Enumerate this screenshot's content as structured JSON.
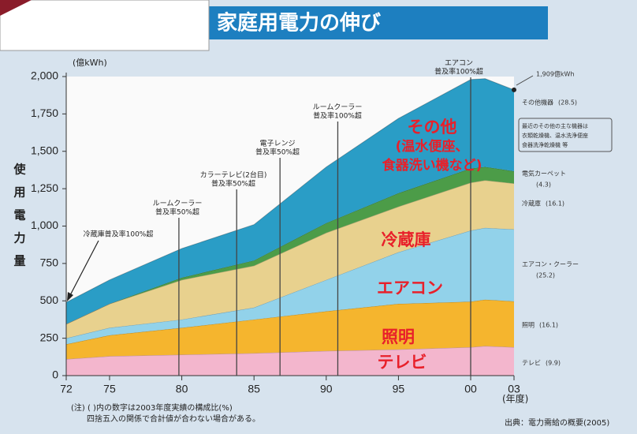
{
  "title": "家庭用電力の伸び",
  "chart_data": {
    "type": "stacked_area",
    "y_unit": "(億kWh)",
    "y_label": "使用電力量",
    "x_unit": "(年度)",
    "x": [
      1972,
      1975,
      1980,
      1985,
      1990,
      1995,
      2000,
      2001,
      2003
    ],
    "xlim": [
      1972,
      2003
    ],
    "xticks": [
      {
        "value": 1972,
        "label": "72"
      },
      {
        "value": 1975,
        "label": "75"
      },
      {
        "value": 1980,
        "label": "80"
      },
      {
        "value": 1985,
        "label": "85"
      },
      {
        "value": 1990,
        "label": "90"
      },
      {
        "value": 1995,
        "label": "95"
      },
      {
        "value": 2000,
        "label": "00"
      },
      {
        "value": 2003,
        "label": "03"
      }
    ],
    "ylim": [
      0,
      2000
    ],
    "yticks": [
      0,
      250,
      500,
      750,
      {
        "value": 1000,
        "label": "1,000"
      },
      {
        "value": 1250,
        "label": "1,250"
      },
      {
        "value": 1500,
        "label": "1,500"
      },
      {
        "value": 1750,
        "label": "1,750"
      },
      {
        "value": 2000,
        "label": "2,000"
      }
    ],
    "series": [
      {
        "name": "テレビ",
        "share": "(9.9)",
        "area_label": [
          "テレビ"
        ],
        "color": "#f3b6cd",
        "values": [
          110,
          130,
          140,
          150,
          165,
          175,
          190,
          198,
          190
        ]
      },
      {
        "name": "照明",
        "share": "(16.1)",
        "area_label": [
          "照明"
        ],
        "color": "#f5b52e",
        "values": [
          100,
          140,
          180,
          225,
          265,
          305,
          305,
          310,
          307
        ]
      },
      {
        "name": "エアコン・クーラー",
        "share": "(25.2)",
        "area_label": [
          "エアコン"
        ],
        "color": "#92d2ea",
        "values": [
          40,
          50,
          55,
          80,
          210,
          345,
          475,
          480,
          481
        ]
      },
      {
        "name": "冷蔵庫",
        "share": "(16.1)",
        "area_label": [
          "冷蔵庫"
        ],
        "color": "#e8d18e",
        "values": [
          95,
          160,
          265,
          280,
          315,
          305,
          320,
          318,
          307
        ]
      },
      {
        "name": "電気カーペット",
        "share": "(4.3)",
        "color": "#4c9c48",
        "values": [
          0,
          0,
          15,
          35,
          65,
          90,
          95,
          90,
          82
        ]
      },
      {
        "name": "その他機器",
        "share": "(28.5)",
        "area_label": [
          "その他",
          "(温水便座、",
          "食器洗い機など)"
        ],
        "color": "#2a9dc6",
        "values": [
          145,
          160,
          195,
          240,
          375,
          500,
          595,
          590,
          544
        ]
      }
    ],
    "total_label": "1,909億kWh",
    "other_note": [
      "最近のその他の主な機器は",
      "衣類乾燥機、温水洗浄便座",
      "食器洗浄乾燥機 等"
    ],
    "events": [
      {
        "x": 1979.8,
        "text": [
          "ルームクーラー",
          "普及率50%超"
        ]
      },
      {
        "x": 1983.8,
        "text": [
          "カラーテレビ(2台目)",
          "普及率50%超"
        ]
      },
      {
        "x": 1986.8,
        "text": [
          "電子レンジ",
          "普及率50%超"
        ]
      },
      {
        "x": 1990.8,
        "text": [
          "ルームクーラー",
          "普及率100%超"
        ]
      },
      {
        "x": 2000,
        "text": [
          "エアコン",
          "普及率100%超"
        ]
      }
    ],
    "arrow_note": "冷蔵庫普及率100%超",
    "notes": [
      "(注) ( )内の数字は2003年度実績の構成比(%)",
      "四捨五入の関係で合計値が合わない場合がある。"
    ],
    "source": "出典：電力需給の概要(2005)"
  }
}
